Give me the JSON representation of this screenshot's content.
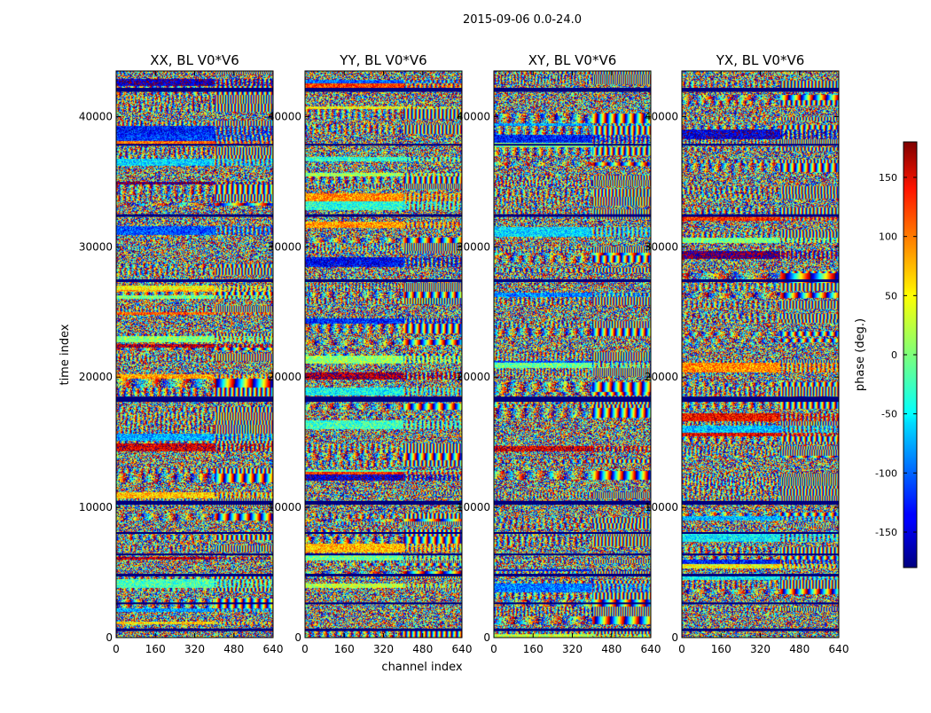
{
  "figure": {
    "suptitle": "2015-09-06 0.0-24.0"
  },
  "chart_data": {
    "type": "heatmap",
    "quantity": "phase",
    "xlabel": "channel index",
    "ylabel": "time index",
    "xlim": [
      0,
      640
    ],
    "ylim": [
      0,
      43500
    ],
    "xticks": [
      0,
      160,
      320,
      480,
      640
    ],
    "yticks": [
      0,
      10000,
      20000,
      30000,
      40000
    ],
    "panels": [
      {
        "title": "XX, BL V0*V6",
        "pol": "XX"
      },
      {
        "title": "YY, BL V0*V6",
        "pol": "YY"
      },
      {
        "title": "XY, BL V0*V6",
        "pol": "XY"
      },
      {
        "title": "YX, BL V0*V6",
        "pol": "YX"
      }
    ],
    "colorbar": {
      "label": "phase (deg.)",
      "range": [
        -180,
        180
      ],
      "ticks": [
        -150,
        -100,
        -50,
        0,
        50,
        100,
        150
      ],
      "colormap": "jet"
    },
    "flagged_time_bands": [
      [
        500,
        700
      ],
      [
        2600,
        2700
      ],
      [
        4700,
        4900
      ],
      [
        6350,
        6450
      ],
      [
        8000,
        8100
      ],
      [
        10200,
        10500
      ],
      [
        18100,
        18500
      ],
      [
        27300,
        27500
      ],
      [
        32300,
        32500
      ],
      [
        37800,
        37900
      ],
      [
        41900,
        42200
      ]
    ],
    "band_split_channel": 400,
    "colors": {
      "flag": "#00007f",
      "axis": "#000000"
    }
  }
}
